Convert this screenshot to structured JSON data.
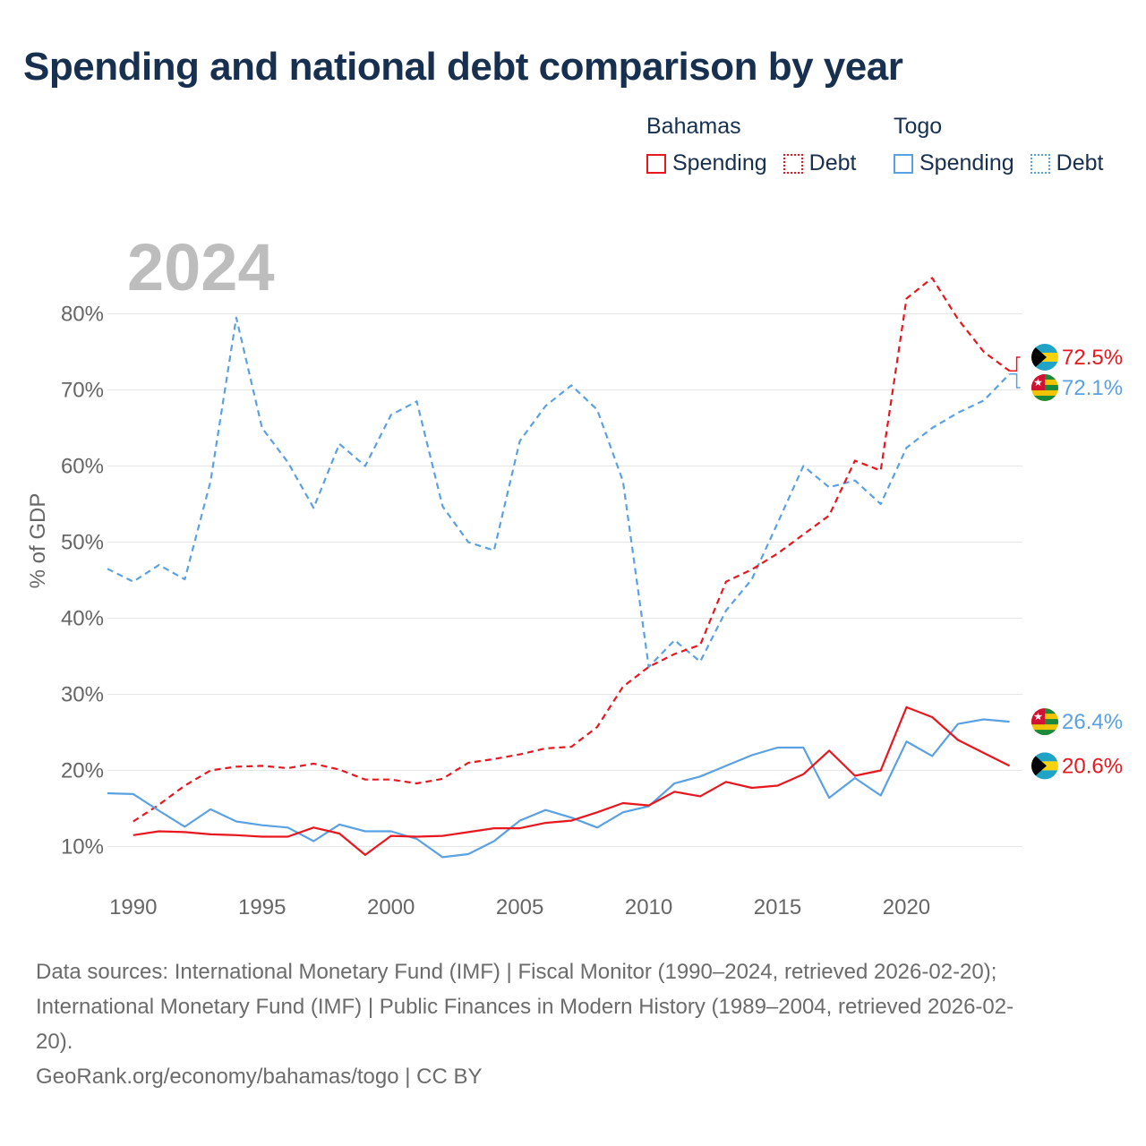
{
  "title": "Spending and national debt comparison by year",
  "legend": {
    "groups": [
      {
        "name": "Bahamas",
        "color": "#e8171f",
        "items": [
          {
            "label": "Spending",
            "style": "solid"
          },
          {
            "label": "Debt",
            "style": "dotted"
          }
        ]
      },
      {
        "name": "Togo",
        "color": "#5aa1e3",
        "items": [
          {
            "label": "Spending",
            "style": "solid"
          },
          {
            "label": "Debt",
            "style": "dotted"
          }
        ]
      }
    ]
  },
  "chart_data": {
    "type": "line",
    "year_label": "2024",
    "ylabel": "% of GDP",
    "xlim": [
      1989,
      2024.5
    ],
    "ylim": [
      3,
      93
    ],
    "x_ticks": [
      1990,
      1995,
      2000,
      2005,
      2010,
      2015,
      2020
    ],
    "y_ticks": [
      10,
      20,
      30,
      40,
      50,
      60,
      70,
      80
    ],
    "y_tick_labels": [
      "10%",
      "20%",
      "30%",
      "40%",
      "50%",
      "60%",
      "70%",
      "80%"
    ],
    "series": [
      {
        "name": "Togo Debt",
        "country": "Togo",
        "metric": "Debt",
        "color": "#5aa1e3",
        "dash": "dashed",
        "x": [
          1989,
          1990,
          1991,
          1992,
          1993,
          1994,
          1995,
          1996,
          1997,
          1998,
          1999,
          2000,
          2001,
          2002,
          2003,
          2004,
          2005,
          2006,
          2007,
          2008,
          2009,
          2010,
          2011,
          2012,
          2013,
          2014,
          2015,
          2016,
          2017,
          2018,
          2019,
          2020,
          2021,
          2022,
          2023,
          2024
        ],
        "values": [
          46.5,
          44.8,
          47.0,
          45.1,
          58.0,
          79.5,
          65.0,
          60.5,
          54.5,
          62.9,
          60.0,
          66.7,
          68.5,
          54.7,
          50.0,
          48.9,
          63.3,
          67.9,
          70.6,
          67.4,
          58.0,
          33.6,
          37.1,
          34.3,
          41.0,
          45.1,
          52.5,
          60.0,
          57.2,
          58.1,
          55.0,
          62.4,
          65.0,
          67.0,
          68.6,
          72.1
        ]
      },
      {
        "name": "Bahamas Debt",
        "country": "Bahamas",
        "metric": "Debt",
        "color": "#e8171f",
        "dash": "dashed",
        "x": [
          1990,
          1991,
          1992,
          1993,
          1994,
          1995,
          1996,
          1997,
          1998,
          1999,
          2000,
          2001,
          2002,
          2003,
          2004,
          2005,
          2006,
          2007,
          2008,
          2009,
          2010,
          2011,
          2012,
          2013,
          2014,
          2015,
          2016,
          2017,
          2018,
          2019,
          2020,
          2021,
          2022,
          2023,
          2024
        ],
        "values": [
          13.3,
          15.5,
          18.0,
          20.0,
          20.5,
          20.6,
          20.3,
          20.9,
          20.1,
          18.8,
          18.8,
          18.3,
          18.9,
          21.0,
          21.5,
          22.1,
          22.9,
          23.1,
          25.7,
          31.0,
          33.6,
          35.3,
          36.5,
          44.8,
          46.4,
          48.5,
          51.0,
          53.5,
          60.7,
          59.4,
          82.0,
          84.7,
          79.3,
          75.0,
          72.5
        ]
      },
      {
        "name": "Togo Spending",
        "country": "Togo",
        "metric": "Spending",
        "color": "#5aa1e3",
        "dash": "solid",
        "x": [
          1989,
          1990,
          1991,
          1992,
          1993,
          1994,
          1995,
          1996,
          1997,
          1998,
          1999,
          2000,
          2001,
          2002,
          2003,
          2004,
          2005,
          2006,
          2007,
          2008,
          2009,
          2010,
          2011,
          2012,
          2013,
          2014,
          2015,
          2016,
          2017,
          2018,
          2019,
          2020,
          2021,
          2022,
          2023,
          2024
        ],
        "values": [
          17.0,
          16.9,
          14.7,
          12.6,
          14.9,
          13.3,
          12.8,
          12.5,
          10.7,
          12.9,
          12.0,
          12.0,
          11.0,
          8.6,
          9.0,
          10.7,
          13.4,
          14.8,
          13.8,
          12.5,
          14.5,
          15.3,
          18.3,
          19.2,
          20.6,
          22.0,
          23.0,
          23.0,
          16.4,
          19.0,
          16.7,
          23.8,
          21.9,
          26.1,
          26.7,
          26.4
        ]
      },
      {
        "name": "Bahamas Spending",
        "country": "Bahamas",
        "metric": "Spending",
        "color": "#e8171f",
        "dash": "solid",
        "x": [
          1990,
          1991,
          1992,
          1993,
          1994,
          1995,
          1996,
          1997,
          1998,
          1999,
          2000,
          2001,
          2002,
          2003,
          2004,
          2005,
          2006,
          2007,
          2008,
          2009,
          2010,
          2011,
          2012,
          2013,
          2014,
          2015,
          2016,
          2017,
          2018,
          2019,
          2020,
          2021,
          2022,
          2023,
          2024
        ],
        "values": [
          11.5,
          12.0,
          11.9,
          11.6,
          11.5,
          11.3,
          11.3,
          12.5,
          11.7,
          8.9,
          11.4,
          11.3,
          11.4,
          11.9,
          12.4,
          12.4,
          13.1,
          13.4,
          14.5,
          15.7,
          15.4,
          17.2,
          16.6,
          18.5,
          17.7,
          18.0,
          19.5,
          22.6,
          19.3,
          20.0,
          28.3,
          27.0,
          24.0,
          22.3,
          20.6
        ]
      }
    ],
    "end_labels": [
      {
        "text": "72.5%",
        "value": 72.5,
        "country": "Bahamas",
        "color": "#e8171f"
      },
      {
        "text": "72.1%",
        "value": 72.1,
        "country": "Togo",
        "color": "#5aa1e3"
      },
      {
        "text": "26.4%",
        "value": 26.4,
        "country": "Togo",
        "color": "#5aa1e3"
      },
      {
        "text": "20.6%",
        "value": 20.6,
        "country": "Bahamas",
        "color": "#e8171f"
      }
    ]
  },
  "footer": {
    "line1": "Data sources: International Monetary Fund (IMF) | Fiscal Monitor (1990–2024, retrieved 2026-02-20);",
    "line2": "International Monetary Fund (IMF) | Public Finances in Modern History (1989–2004, retrieved 2026-02-",
    "line3": "20).",
    "line4": "GeoRank.org/economy/bahamas/togo | CC BY"
  }
}
